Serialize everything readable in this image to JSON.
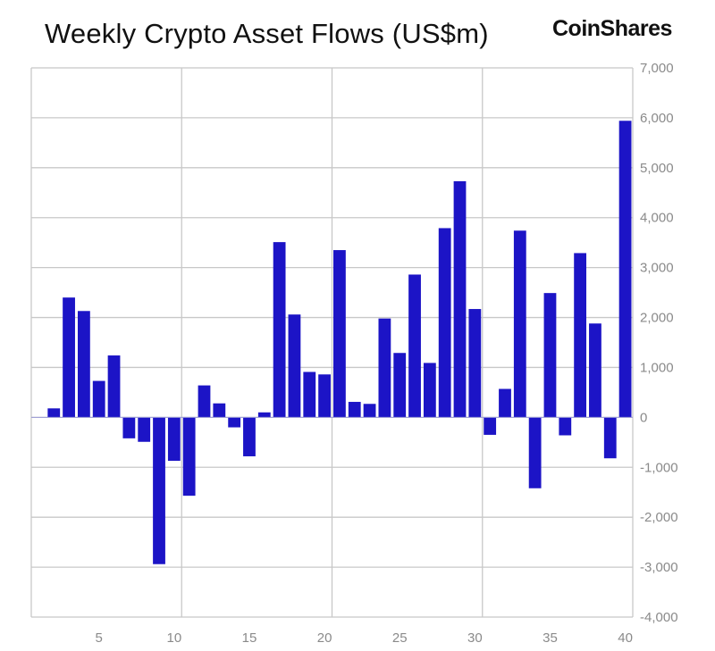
{
  "chart_data": {
    "type": "bar",
    "title": "Weekly Crypto Asset Flows (US$m)",
    "brand": "CoinShares",
    "xlabel": "",
    "ylabel": "",
    "x": [
      2,
      3,
      4,
      5,
      6,
      7,
      8,
      9,
      10,
      11,
      12,
      13,
      14,
      15,
      16,
      17,
      18,
      19,
      20,
      21,
      22,
      23,
      24,
      25,
      26,
      27,
      28,
      29,
      30,
      31,
      32,
      33,
      34,
      35,
      36,
      37,
      38,
      39,
      40
    ],
    "values": [
      180,
      2400,
      2130,
      730,
      1240,
      -420,
      -490,
      -2940,
      -870,
      -1570,
      640,
      280,
      -200,
      -780,
      100,
      3510,
      2060,
      910,
      860,
      3350,
      310,
      270,
      1980,
      1290,
      2860,
      1090,
      3790,
      4730,
      2170,
      -350,
      570,
      3740,
      -1420,
      2490,
      -360,
      3290,
      1880,
      -820,
      5940
    ],
    "xlim": [
      0.5,
      40.5
    ],
    "ylim": [
      -4000,
      7000
    ],
    "x_ticks": [
      5,
      10,
      15,
      20,
      25,
      30,
      35,
      40
    ],
    "x_tick_labels": [
      "5",
      "10",
      "15",
      "20",
      "25",
      "30",
      "35",
      "40"
    ],
    "y_ticks": [
      -4000,
      -3000,
      -2000,
      -1000,
      0,
      1000,
      2000,
      3000,
      4000,
      5000,
      6000,
      7000
    ],
    "y_tick_labels": [
      "-4,000",
      "-3,000",
      "-2,000",
      "-1,000",
      "0",
      "1,000",
      "2,000",
      "3,000",
      "4,000",
      "5,000",
      "6,000",
      "7,000"
    ],
    "y_axis_side": "right",
    "grid": true,
    "x_grid_at": [
      10.5,
      20.5,
      30.5
    ],
    "bar_color": "#1c14c6",
    "grid_color": "#c8c8c8"
  }
}
